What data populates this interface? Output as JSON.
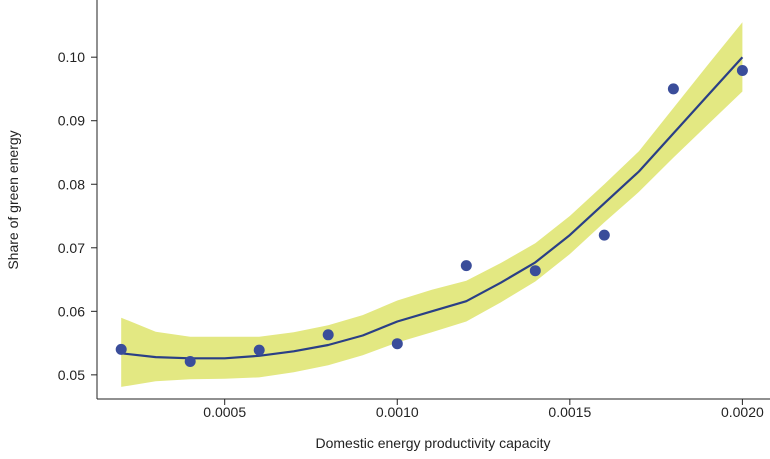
{
  "chart_data": {
    "type": "scatter",
    "title": "",
    "xlabel": "Domestic energy productivity capacity",
    "ylabel": "Share of green energy",
    "xlim": [
      0.00013,
      0.00208
    ],
    "ylim": [
      0.0462,
      0.109
    ],
    "x_ticks": [
      {
        "value": 0.0005,
        "label": "0.0005"
      },
      {
        "value": 0.001,
        "label": "0.0010"
      },
      {
        "value": 0.0015,
        "label": "0.0015"
      },
      {
        "value": 0.002,
        "label": "0.0020"
      }
    ],
    "y_ticks": [
      {
        "value": 0.05,
        "label": "0.05"
      },
      {
        "value": 0.06,
        "label": "0.06"
      },
      {
        "value": 0.07,
        "label": "0.07"
      },
      {
        "value": 0.08,
        "label": "0.08"
      },
      {
        "value": 0.09,
        "label": "0.09"
      },
      {
        "value": 0.1,
        "label": "0.10"
      }
    ],
    "grid": false,
    "points": {
      "x": [
        0.0002,
        0.0004,
        0.0006,
        0.0008,
        0.001,
        0.0012,
        0.0014,
        0.0016,
        0.0018,
        0.002
      ],
      "y": [
        0.054,
        0.0521,
        0.0539,
        0.0563,
        0.0549,
        0.0672,
        0.0664,
        0.072,
        0.095,
        0.0979
      ]
    },
    "fit_line": {
      "x": [
        0.0002,
        0.0003,
        0.0004,
        0.0005,
        0.0006,
        0.0007,
        0.0008,
        0.0009,
        0.001,
        0.0011,
        0.0012,
        0.0013,
        0.0014,
        0.0015,
        0.0016,
        0.0017,
        0.0018,
        0.0019,
        0.002
      ],
      "y": [
        0.0534,
        0.0528,
        0.0526,
        0.0526,
        0.053,
        0.0537,
        0.0547,
        0.0562,
        0.0584,
        0.06,
        0.0616,
        0.0645,
        0.0677,
        0.072,
        0.077,
        0.082,
        0.088,
        0.094,
        0.1
      ]
    },
    "confidence_band": {
      "upper": [
        0.059,
        0.0568,
        0.056,
        0.056,
        0.056,
        0.0567,
        0.0578,
        0.0594,
        0.0617,
        0.0634,
        0.0648,
        0.0676,
        0.0707,
        0.075,
        0.08,
        0.0852,
        0.092,
        0.0988,
        0.1055
      ],
      "lower": [
        0.0481,
        0.049,
        0.0493,
        0.0494,
        0.0496,
        0.0504,
        0.0515,
        0.0531,
        0.0551,
        0.0567,
        0.0584,
        0.0614,
        0.0647,
        0.069,
        0.074,
        0.0788,
        0.0842,
        0.0894,
        0.0946
      ]
    },
    "colors": {
      "points": "#3a4d9a",
      "line": "#2a3f86",
      "band": "#e3e882",
      "axis": "#222222"
    }
  }
}
